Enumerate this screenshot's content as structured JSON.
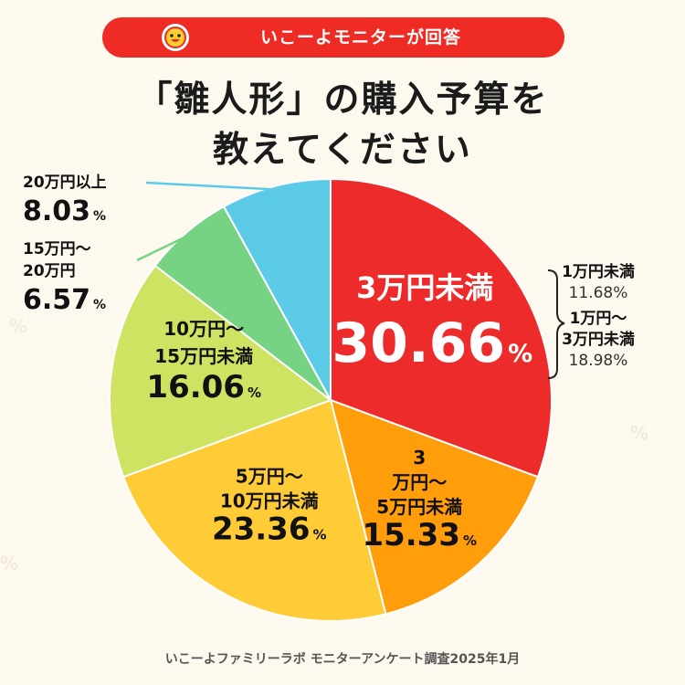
{
  "banner": {
    "text": "いこーよモニターが回答",
    "color": "#ee2b24",
    "icon": "smiley-mascot-icon"
  },
  "title": {
    "line1": "「雛人形」の購入予算を",
    "line2": "教えてください"
  },
  "chart_data": {
    "type": "pie",
    "start": "top, clockwise",
    "slices": [
      {
        "label": "3万円未満",
        "value": 30.66,
        "color": "#ee2b2b",
        "label_color": "#ffffff"
      },
      {
        "label": "3 万円〜 5万円未満",
        "value": 15.33,
        "color": "#ff9e0a",
        "label_color": "#111111"
      },
      {
        "label": "5万円〜 10万円未満",
        "value": 23.36,
        "color": "#ffcb36",
        "label_color": "#111111"
      },
      {
        "label": "10万円〜 15万円未満",
        "value": 16.06,
        "color": "#cfe363",
        "label_color": "#111111"
      },
      {
        "label": "15万円〜 20万円",
        "value": 6.57,
        "color": "#76d383",
        "label_color": "#111111"
      },
      {
        "label": "20万円以上",
        "value": 8.03,
        "color": "#5ccbe8",
        "label_color": "#111111"
      }
    ],
    "breakdown": [
      {
        "label": "1万円未満",
        "value": "11.68%"
      },
      {
        "label": "1万円〜 3万円未満",
        "value": "18.98%"
      }
    ],
    "unit": "%"
  },
  "footer": "いこーよファミリーラボ モニターアンケート調査2025年1月"
}
